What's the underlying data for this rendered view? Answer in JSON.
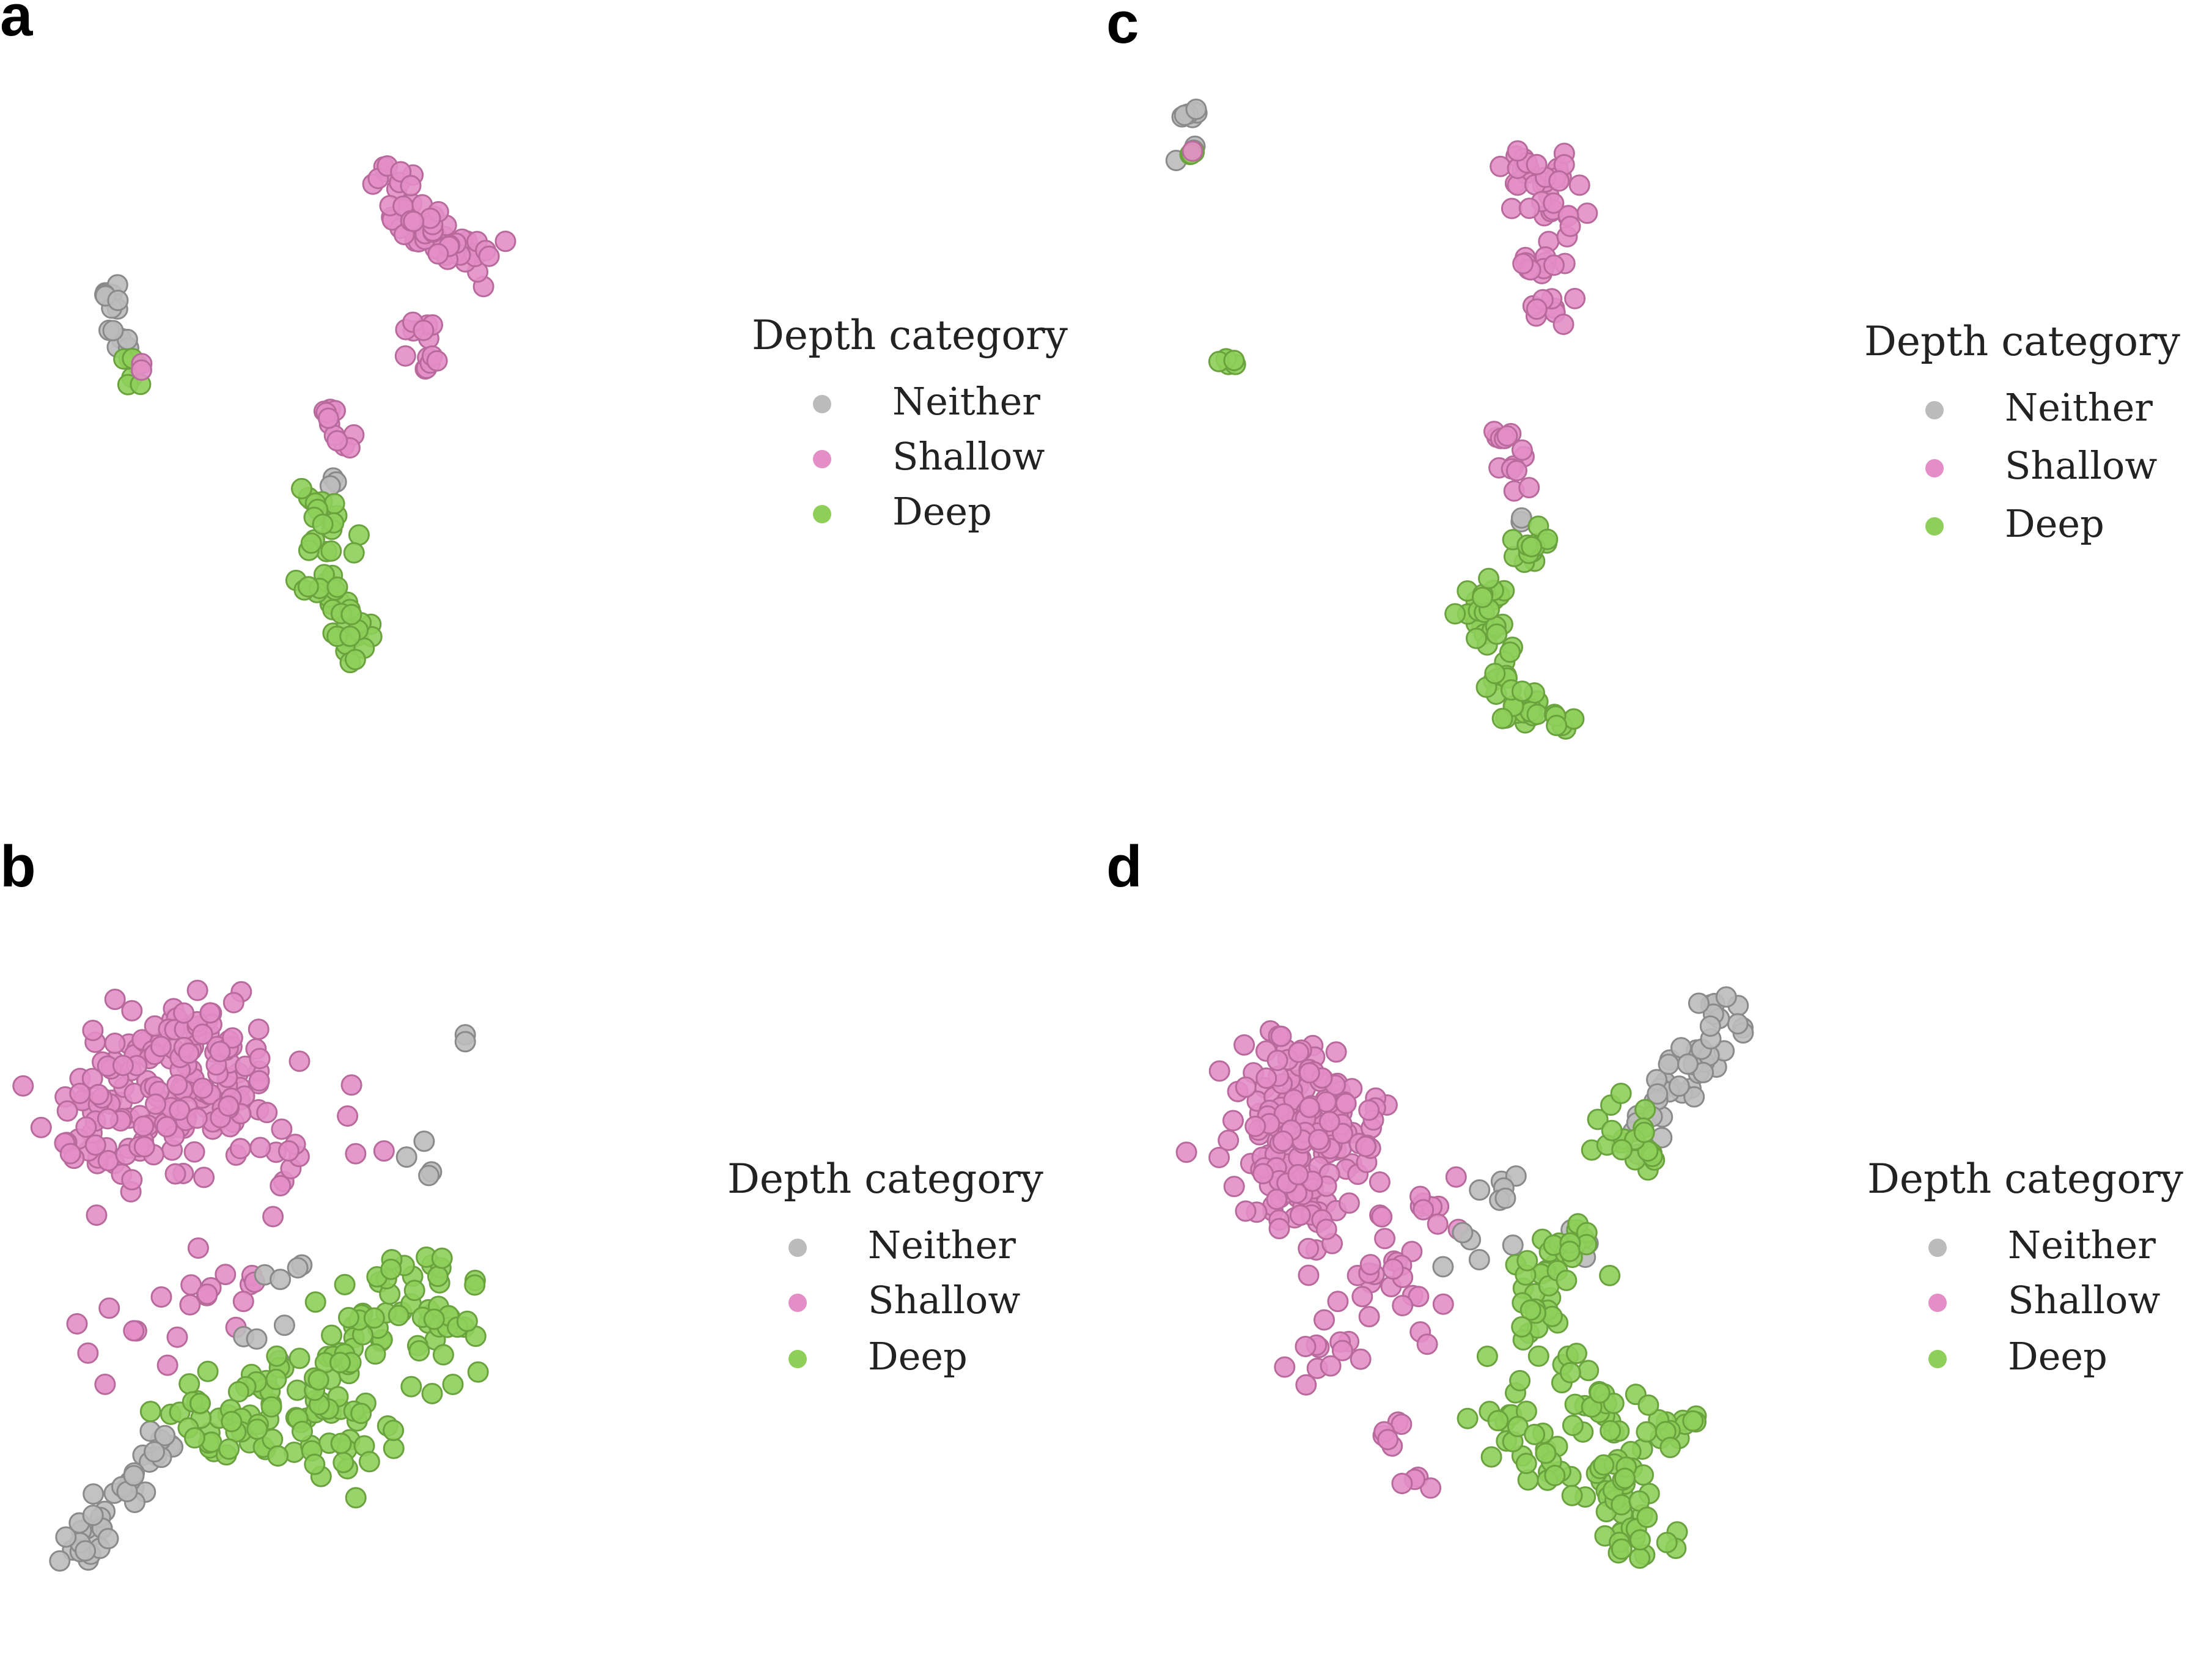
{
  "colors": {
    "Neither": "#bbbbbb",
    "Shallow": "#e38ec6",
    "Deep": "#8ecf5a"
  },
  "chart_data": [
    {
      "panel": "a",
      "type": "scatter",
      "title": "",
      "xlabel": "",
      "ylabel": "",
      "grid": false,
      "axes_visible": false,
      "legend_title": "Depth category",
      "legend_placement": "right",
      "legend": [
        "Neither",
        "Shallow",
        "Deep"
      ],
      "clusters": [
        {
          "category": "Neither",
          "centers": [
            [
              0.06,
              0.63
            ],
            [
              0.07,
              0.59
            ],
            [
              0.07,
              0.55
            ],
            [
              0.08,
              0.52
            ]
          ],
          "spread": 0.01,
          "count": 14,
          "seed": 11
        },
        {
          "category": "Deep",
          "centers": [
            [
              0.09,
              0.48
            ],
            [
              0.1,
              0.44
            ]
          ],
          "spread": 0.009,
          "count": 7,
          "seed": 12
        },
        {
          "category": "Shallow",
          "centers": [
            [
              0.11,
              0.46
            ]
          ],
          "spread": 0.005,
          "count": 2,
          "seed": 13
        },
        {
          "category": "Shallow",
          "centers": [
            [
              0.51,
              0.88
            ],
            [
              0.53,
              0.8
            ],
            [
              0.57,
              0.76
            ],
            [
              0.62,
              0.72
            ],
            [
              0.66,
              0.71
            ]
          ],
          "spread": 0.022,
          "count": 60,
          "seed": 14
        },
        {
          "category": "Shallow",
          "centers": [
            [
              0.56,
              0.54
            ],
            [
              0.57,
              0.48
            ]
          ],
          "spread": 0.012,
          "count": 14,
          "seed": 15
        },
        {
          "category": "Shallow",
          "centers": [
            [
              0.41,
              0.35
            ],
            [
              0.44,
              0.3
            ]
          ],
          "spread": 0.012,
          "count": 11,
          "seed": 16
        },
        {
          "category": "Neither",
          "centers": [
            [
              0.42,
              0.22
            ],
            [
              0.41,
              0.19
            ]
          ],
          "spread": 0.006,
          "count": 3,
          "seed": 17
        },
        {
          "category": "Deep",
          "centers": [
            [
              0.39,
              0.15
            ],
            [
              0.4,
              0.08
            ],
            [
              0.38,
              -0.02
            ],
            [
              0.42,
              -0.06
            ],
            [
              0.44,
              -0.12
            ],
            [
              0.46,
              -0.15
            ]
          ],
          "spread": 0.022,
          "count": 55,
          "seed": 18
        }
      ]
    },
    {
      "panel": "c",
      "type": "scatter",
      "title": "",
      "xlabel": "",
      "ylabel": "",
      "grid": false,
      "axes_visible": false,
      "legend_title": "Depth category",
      "legend_placement": "right",
      "legend": [
        "Neither",
        "Shallow",
        "Deep"
      ],
      "clusters": [
        {
          "category": "Neither",
          "centers": [
            [
              0.04,
              0.97
            ],
            [
              0.05,
              0.9
            ],
            [
              0.03,
              0.89
            ]
          ],
          "spread": 0.008,
          "count": 10,
          "seed": 21
        },
        {
          "category": "Deep",
          "centers": [
            [
              0.04,
              0.89
            ]
          ],
          "spread": 0.006,
          "count": 3,
          "seed": 22
        },
        {
          "category": "Shallow",
          "centers": [
            [
              0.05,
              0.9
            ]
          ],
          "spread": 0.004,
          "count": 1,
          "seed": 23
        },
        {
          "category": "Deep",
          "centers": [
            [
              0.1,
              0.5
            ]
          ],
          "spread": 0.006,
          "count": 6,
          "seed": 24
        },
        {
          "category": "Shallow",
          "centers": [
            [
              0.55,
              0.87
            ],
            [
              0.59,
              0.83
            ],
            [
              0.63,
              0.86
            ],
            [
              0.61,
              0.77
            ],
            [
              0.58,
              0.68
            ],
            [
              0.59,
              0.6
            ]
          ],
          "spread": 0.02,
          "count": 60,
          "seed": 25
        },
        {
          "category": "Shallow",
          "centers": [
            [
              0.52,
              0.36
            ],
            [
              0.54,
              0.31
            ],
            [
              0.55,
              0.25
            ]
          ],
          "spread": 0.012,
          "count": 14,
          "seed": 26
        },
        {
          "category": "Neither",
          "centers": [
            [
              0.55,
              0.2
            ]
          ],
          "spread": 0.004,
          "count": 2,
          "seed": 27
        },
        {
          "category": "Deep",
          "centers": [
            [
              0.56,
              0.14
            ],
            [
              0.5,
              0.07
            ],
            [
              0.48,
              0.02
            ],
            [
              0.52,
              -0.03
            ]
          ],
          "spread": 0.02,
          "count": 40,
          "seed": 28
        },
        {
          "category": "Deep",
          "centers": [
            [
              0.51,
              -0.1
            ],
            [
              0.55,
              -0.16
            ],
            [
              0.6,
              -0.18
            ]
          ],
          "spread": 0.018,
          "count": 30,
          "seed": 29
        }
      ]
    },
    {
      "panel": "b",
      "type": "scatter",
      "title": "",
      "xlabel": "",
      "ylabel": "",
      "grid": false,
      "axes_visible": false,
      "legend_title": "Depth category",
      "legend_placement": "right",
      "legend": [
        "Neither",
        "Shallow",
        "Deep"
      ],
      "clusters": [
        {
          "category": "Shallow",
          "centers": [
            [
              0.12,
              0.8
            ],
            [
              0.17,
              0.85
            ],
            [
              0.25,
              0.88
            ],
            [
              0.09,
              0.68
            ],
            [
              0.18,
              0.72
            ],
            [
              0.28,
              0.76
            ]
          ],
          "spread": 0.05,
          "count": 190,
          "seed": 31
        },
        {
          "category": "Shallow",
          "centers": [
            [
              0.36,
              0.62
            ],
            [
              0.28,
              0.44
            ],
            [
              0.2,
              0.36
            ],
            [
              0.1,
              0.32
            ],
            [
              0.44,
              0.7
            ]
          ],
          "spread": 0.045,
          "count": 34,
          "seed": 32
        },
        {
          "category": "Neither",
          "centers": [
            [
              0.36,
              0.44
            ],
            [
              0.34,
              0.3
            ],
            [
              0.63,
              0.87
            ],
            [
              0.58,
              0.66
            ]
          ],
          "spread": 0.02,
          "count": 14,
          "seed": 33
        },
        {
          "category": "Neither",
          "centers": [
            [
              0.16,
              0.1
            ],
            [
              0.12,
              0.02
            ],
            [
              0.08,
              -0.04
            ],
            [
              0.04,
              -0.09
            ]
          ],
          "spread": 0.02,
          "count": 40,
          "seed": 34
        },
        {
          "category": "Deep",
          "centers": [
            [
              0.22,
              0.16
            ],
            [
              0.34,
              0.2
            ],
            [
              0.42,
              0.28
            ],
            [
              0.5,
              0.36
            ],
            [
              0.56,
              0.4
            ],
            [
              0.62,
              0.36
            ],
            [
              0.58,
              0.26
            ],
            [
              0.48,
              0.12
            ],
            [
              0.38,
              0.18
            ],
            [
              0.29,
              0.12
            ]
          ],
          "spread": 0.045,
          "count": 160,
          "seed": 35
        }
      ]
    },
    {
      "panel": "d",
      "type": "scatter",
      "title": "",
      "xlabel": "",
      "ylabel": "",
      "grid": false,
      "axes_visible": false,
      "legend_title": "Depth category",
      "legend_placement": "right",
      "legend": [
        "Neither",
        "Shallow",
        "Deep"
      ],
      "clusters": [
        {
          "category": "Shallow",
          "centers": [
            [
              0.14,
              0.82
            ],
            [
              0.18,
              0.74
            ],
            [
              0.13,
              0.64
            ],
            [
              0.17,
              0.55
            ],
            [
              0.22,
              0.7
            ],
            [
              0.1,
              0.72
            ]
          ],
          "spread": 0.045,
          "count": 190,
          "seed": 41
        },
        {
          "category": "Shallow",
          "centers": [
            [
              0.24,
              0.4
            ],
            [
              0.2,
              0.3
            ],
            [
              0.34,
              0.38
            ],
            [
              0.3,
              0.48
            ],
            [
              0.38,
              0.58
            ]
          ],
          "spread": 0.035,
          "count": 45,
          "seed": 42
        },
        {
          "category": "Shallow",
          "centers": [
            [
              0.32,
              0.12
            ],
            [
              0.34,
              0.02
            ]
          ],
          "spread": 0.02,
          "count": 10,
          "seed": 43
        },
        {
          "category": "Neither",
          "centers": [
            [
              0.85,
              0.92
            ],
            [
              0.8,
              0.84
            ],
            [
              0.76,
              0.78
            ],
            [
              0.72,
              0.72
            ]
          ],
          "spread": 0.025,
          "count": 45,
          "seed": 44
        },
        {
          "category": "Neither",
          "centers": [
            [
              0.48,
              0.6
            ],
            [
              0.42,
              0.48
            ],
            [
              0.52,
              0.5
            ],
            [
              0.62,
              0.5
            ]
          ],
          "spread": 0.03,
          "count": 14,
          "seed": 45
        },
        {
          "category": "Deep",
          "centers": [
            [
              0.56,
              0.45
            ],
            [
              0.6,
              0.5
            ],
            [
              0.54,
              0.36
            ],
            [
              0.58,
              0.26
            ],
            [
              0.52,
              0.16
            ],
            [
              0.58,
              0.06
            ],
            [
              0.64,
              0.16
            ],
            [
              0.68,
              0.04
            ],
            [
              0.72,
              -0.05
            ],
            [
              0.76,
              0.14
            ],
            [
              0.7,
              0.7
            ]
          ],
          "spread": 0.035,
          "count": 170,
          "seed": 46
        }
      ]
    }
  ],
  "panels": [
    {
      "letter": "a"
    },
    {
      "letter": "c"
    },
    {
      "letter": "b"
    },
    {
      "letter": "d"
    }
  ]
}
